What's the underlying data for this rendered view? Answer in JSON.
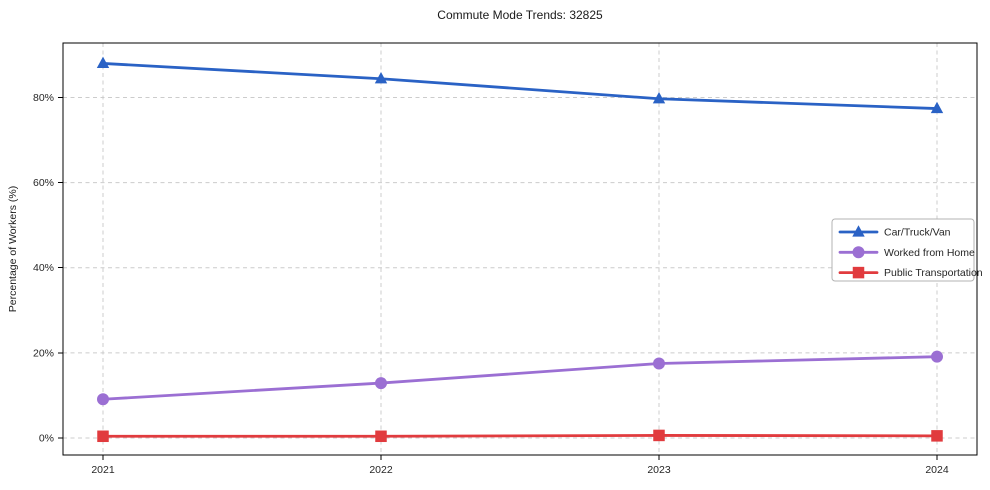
{
  "chart_data": {
    "type": "line",
    "title": "Commute Mode Trends: 32825",
    "xlabel": "",
    "ylabel": "Percentage of Workers (%)",
    "categories": [
      "2021",
      "2022",
      "2023",
      "2024"
    ],
    "series": [
      {
        "name": "Car/Truck/Van",
        "color": "#2a62c5",
        "marker": "triangle",
        "values": [
          88.0,
          84.4,
          79.7,
          77.4
        ]
      },
      {
        "name": "Worked from Home",
        "color": "#9b6fd3",
        "marker": "circle",
        "values": [
          9.1,
          12.9,
          17.5,
          19.1
        ]
      },
      {
        "name": "Public Transportation",
        "color": "#e13b3e",
        "marker": "square",
        "values": [
          0.4,
          0.4,
          0.6,
          0.5
        ]
      }
    ],
    "yticks": {
      "values": [
        0,
        20,
        40,
        60,
        80
      ],
      "labels": [
        "0%",
        "20%",
        "40%",
        "60%",
        "80%"
      ]
    },
    "ylim": [
      -4,
      92.8
    ],
    "grid": true,
    "grid_style": "dashed",
    "legend_position": "center-right",
    "legend_entries": [
      "Car/Truck/Van",
      "Worked from Home",
      "Public Transportation"
    ]
  },
  "styles": {
    "background": "#ffffff",
    "grid_color": "#cccccc",
    "axis_color": "#000000",
    "text_color": "#262626",
    "legend_border": "#b3b3b3",
    "legend_background": "#ffffff"
  }
}
